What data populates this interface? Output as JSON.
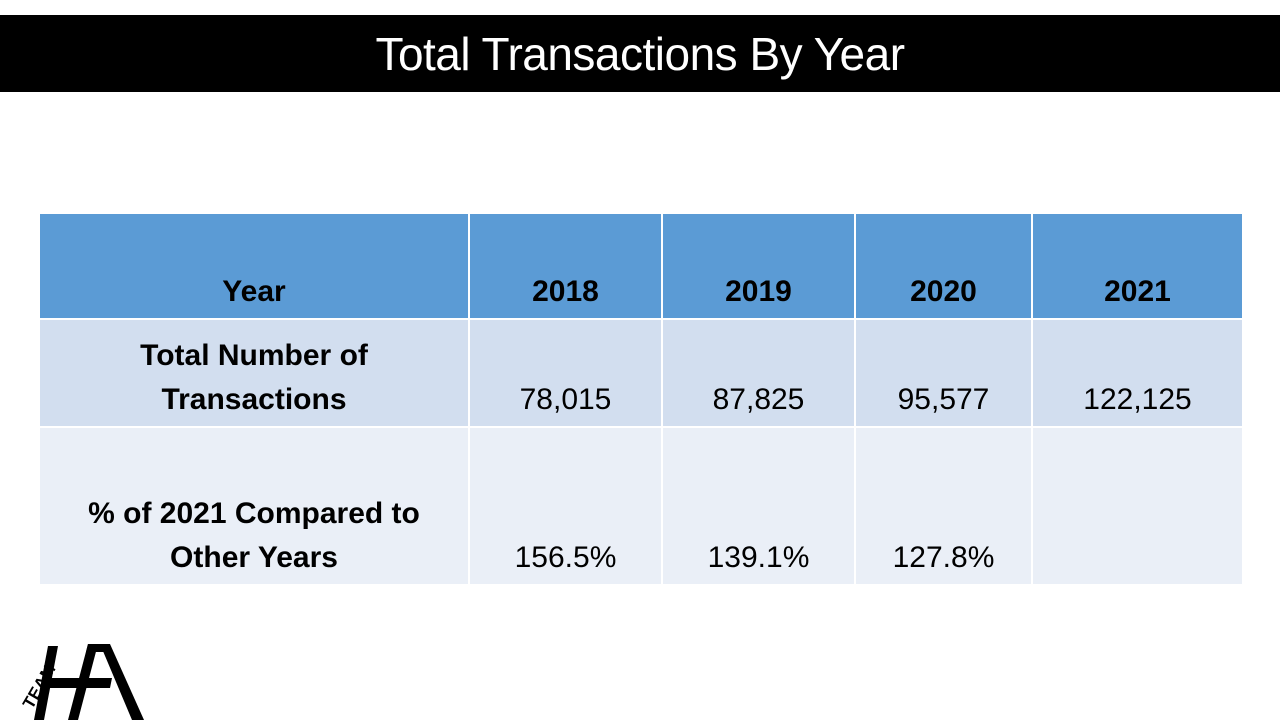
{
  "slide": {
    "title": "Total Transactions By Year"
  },
  "table": {
    "header": {
      "label": "Year",
      "years": [
        "2018",
        "2019",
        "2020",
        "2021"
      ]
    },
    "rows": [
      {
        "label": "Total Number of Transactions",
        "values": [
          "78,015",
          "87,825",
          "95,577",
          "122,125"
        ]
      },
      {
        "label": "% of 2021 Compared to Other Years",
        "values": [
          "156.5%",
          "139.1%",
          "127.8%",
          ""
        ]
      }
    ]
  },
  "logo": {
    "text_small": "TEAM",
    "text_large": "HA",
    "name": "team-ha-logo"
  },
  "colors": {
    "title_bar": "#000000",
    "header_fill": "#5b9bd5",
    "row_odd_fill": "#d2deef",
    "row_even_fill": "#eaeff7"
  }
}
